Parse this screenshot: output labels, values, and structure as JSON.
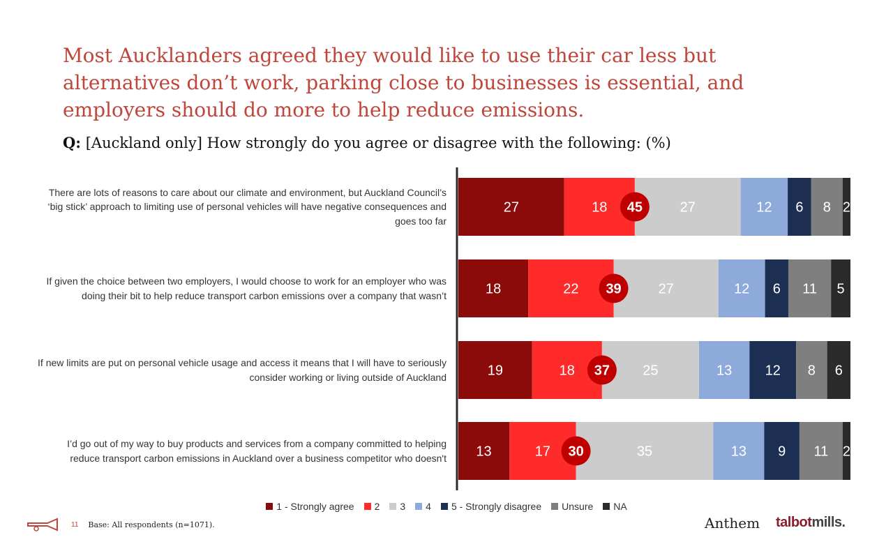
{
  "title": "Most Aucklanders agreed they would like to use their car less but alternatives don’t work, parking close to businesses is essential, and employers should do more to help reduce emissions.",
  "question": {
    "prefix": "Q:",
    "text": "[Auckland only] How strongly do you agree or disagree with the following: (%)"
  },
  "chart_data": {
    "type": "bar",
    "orientation": "horizontal",
    "stacked": true,
    "categories": [
      "There are lots of reasons to care about our climate and environment, but Auckland Council’s ‘big stick’ approach to limiting use of personal vehicles will have negative consequences and goes too far",
      "If given the choice between two employers, I would choose to work for an employer who was doing their bit to help reduce transport carbon emissions over a company that wasn’t",
      "If new limits are put on personal vehicle usage and access it means that I will have to seriously consider working or living outside of Auckland",
      "I’d go out of my way to buy products and services from a company committed to helping reduce transport carbon emissions in Auckland over a business competitor who doesn't"
    ],
    "series": [
      {
        "name": "1 - Strongly agree",
        "color": "#8b0a0a",
        "values": [
          27,
          18,
          19,
          13
        ]
      },
      {
        "name": "2",
        "color": "#ff2a2a",
        "values": [
          18,
          22,
          18,
          17
        ]
      },
      {
        "name": "3",
        "color": "#cccccc",
        "values": [
          27,
          27,
          25,
          35
        ]
      },
      {
        "name": "4",
        "color": "#8eaadb",
        "values": [
          12,
          12,
          13,
          13
        ]
      },
      {
        "name": "5 - Strongly disagree",
        "color": "#1c2f52",
        "values": [
          6,
          6,
          12,
          9
        ]
      },
      {
        "name": "Unsure",
        "color": "#7f7f7f",
        "values": [
          8,
          11,
          8,
          11
        ]
      },
      {
        "name": "NA",
        "color": "#2b2b2b",
        "values": [
          2,
          5,
          6,
          2
        ]
      }
    ],
    "net_agree": [
      45,
      39,
      37,
      30
    ],
    "net_agree_color": "#c00000"
  },
  "footer": {
    "page_number": "11",
    "base_note": "Base: All respondents (n=1071)."
  },
  "logos": {
    "anthem": "Anthem",
    "talbot": "talbot",
    "mills": "mills."
  }
}
